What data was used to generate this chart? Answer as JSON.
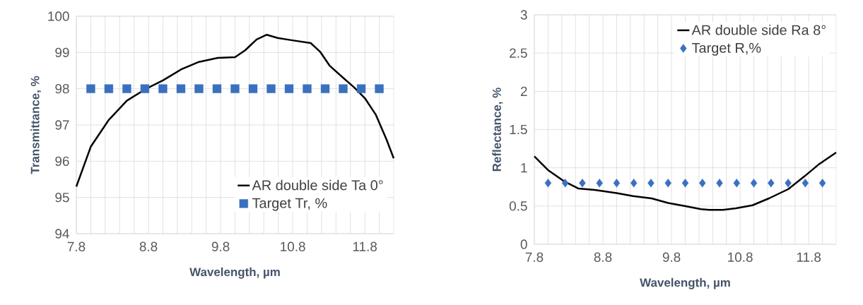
{
  "chart_data": [
    {
      "type": "line",
      "xlabel": "Wavelength, µm",
      "ylabel": "Transmittance, %",
      "xlim": [
        7.8,
        12.2
      ],
      "ylim": [
        94,
        100
      ],
      "xticks": [
        7.8,
        {
          "value": 8.0,
          "label": null
        },
        {
          "value": 8.2,
          "label": null
        },
        {
          "value": 8.4,
          "label": null
        },
        {
          "value": 8.6,
          "label": null
        },
        8.8,
        {
          "value": 9.0,
          "label": null
        },
        {
          "value": 9.2,
          "label": null
        },
        {
          "value": 9.4,
          "label": null
        },
        {
          "value": 9.6,
          "label": null
        },
        9.8,
        {
          "value": 10.0,
          "label": null
        },
        {
          "value": 10.2,
          "label": null
        },
        {
          "value": 10.4,
          "label": null
        },
        {
          "value": 10.6,
          "label": null
        },
        10.8,
        {
          "value": 11.0,
          "label": null
        },
        {
          "value": 11.2,
          "label": null
        },
        {
          "value": 11.4,
          "label": null
        },
        {
          "value": 11.6,
          "label": null
        },
        11.8,
        {
          "value": 12.0,
          "label": null
        }
      ],
      "yticks": [
        94,
        95,
        96,
        97,
        98,
        99,
        100
      ],
      "grid": true,
      "legend": "bottom right",
      "series": [
        {
          "name": "AR double side Ta 0°",
          "color": "#000000",
          "x": [
            7.8,
            8.0,
            8.25,
            8.5,
            8.75,
            9.0,
            9.25,
            9.5,
            9.76,
            10.0,
            10.14,
            10.3,
            10.44,
            10.59,
            10.78,
            11.05,
            11.18,
            11.31,
            11.5,
            11.65,
            11.8,
            11.95,
            12.1,
            12.2
          ],
          "values": [
            95.3,
            96.4,
            97.14,
            97.67,
            97.98,
            98.23,
            98.53,
            98.74,
            98.85,
            98.87,
            99.06,
            99.36,
            99.49,
            99.4,
            99.34,
            99.26,
            99.02,
            98.64,
            98.3,
            98.04,
            97.74,
            97.29,
            96.6,
            96.08
          ]
        },
        {
          "name": "Target Tr, %",
          "type": "scatter",
          "marker": "square",
          "color": "#3a70c0",
          "x": [
            8.0,
            8.25,
            8.5,
            8.75,
            9.0,
            9.25,
            9.5,
            9.75,
            10.0,
            10.25,
            10.5,
            10.75,
            11.0,
            11.25,
            11.5,
            11.75,
            12.0
          ],
          "values": [
            98,
            98,
            98,
            98,
            98,
            98,
            98,
            98,
            98,
            98,
            98,
            98,
            98,
            98,
            98,
            98,
            98
          ]
        }
      ]
    },
    {
      "type": "line",
      "xlabel": "Wavelength, µm",
      "ylabel": "Reflectance, %",
      "xlim": [
        7.8,
        12.2
      ],
      "ylim": [
        0,
        3
      ],
      "xticks": [
        7.8,
        {
          "value": 8.0,
          "label": null
        },
        {
          "value": 8.2,
          "label": null
        },
        {
          "value": 8.4,
          "label": null
        },
        {
          "value": 8.6,
          "label": null
        },
        8.8,
        {
          "value": 9.0,
          "label": null
        },
        {
          "value": 9.2,
          "label": null
        },
        {
          "value": 9.4,
          "label": null
        },
        {
          "value": 9.6,
          "label": null
        },
        9.8,
        {
          "value": 10.0,
          "label": null
        },
        {
          "value": 10.2,
          "label": null
        },
        {
          "value": 10.4,
          "label": null
        },
        {
          "value": 10.6,
          "label": null
        },
        10.8,
        {
          "value": 11.0,
          "label": null
        },
        {
          "value": 11.2,
          "label": null
        },
        {
          "value": 11.4,
          "label": null
        },
        {
          "value": 11.6,
          "label": null
        },
        11.8,
        {
          "value": 12.0,
          "label": null
        }
      ],
      "yticks": [
        0,
        0.5,
        1,
        1.5,
        2,
        2.5,
        3
      ],
      "grid": true,
      "legend": "top right",
      "series": [
        {
          "name": "AR double side Ra 8°",
          "color": "#000000",
          "x": [
            7.8,
            8.0,
            8.24,
            8.44,
            8.68,
            9.0,
            9.24,
            9.51,
            9.75,
            9.99,
            10.23,
            10.35,
            10.55,
            10.74,
            10.98,
            11.22,
            11.5,
            11.74,
            11.94,
            12.2
          ],
          "values": [
            1.15,
            0.97,
            0.82,
            0.73,
            0.71,
            0.67,
            0.63,
            0.6,
            0.54,
            0.5,
            0.46,
            0.45,
            0.45,
            0.47,
            0.51,
            0.6,
            0.72,
            0.89,
            1.04,
            1.2
          ]
        },
        {
          "name": "Target R,%",
          "type": "scatter",
          "marker": "diamond",
          "color": "#3a70c0",
          "x": [
            8.0,
            8.25,
            8.5,
            8.75,
            9.0,
            9.25,
            9.5,
            9.75,
            10.0,
            10.25,
            10.5,
            10.75,
            11.0,
            11.25,
            11.5,
            11.75,
            12.0
          ],
          "values": [
            0.8,
            0.8,
            0.8,
            0.8,
            0.8,
            0.8,
            0.8,
            0.8,
            0.8,
            0.8,
            0.8,
            0.8,
            0.8,
            0.8,
            0.8,
            0.8,
            0.8
          ]
        }
      ]
    }
  ]
}
